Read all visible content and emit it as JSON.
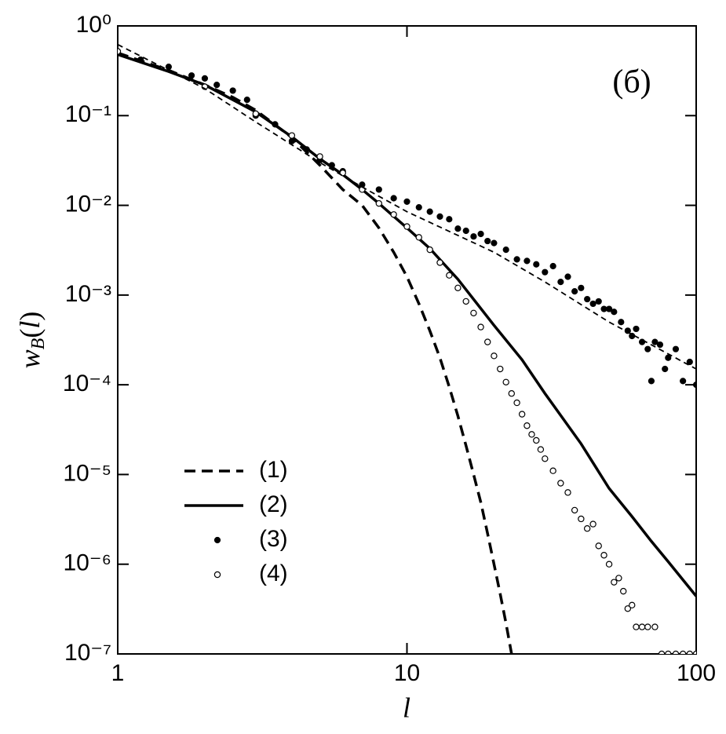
{
  "chart_data": {
    "type": "line",
    "log_x": true,
    "log_y": true,
    "x_label": "l",
    "y_label": [
      "w",
      "B",
      "(",
      "l",
      ")"
    ],
    "annotation": "(б)",
    "xlim": [
      1,
      100
    ],
    "xticks": [
      1,
      10,
      100
    ],
    "ylim": [
      1e-07,
      1
    ],
    "yticks": [
      {
        "value": 1,
        "label": "10⁰"
      },
      {
        "value": 0.1,
        "label": "10⁻¹"
      },
      {
        "value": 0.01,
        "label": "10⁻²"
      },
      {
        "value": 0.001,
        "label": "10⁻³"
      },
      {
        "value": 0.0001,
        "label": "10⁻⁴"
      },
      {
        "value": 1e-05,
        "label": "10⁻⁵"
      },
      {
        "value": 1e-06,
        "label": "10⁻⁶"
      },
      {
        "value": 1e-07,
        "label": "10⁻⁷"
      }
    ],
    "legend": "lower-left",
    "series": [
      {
        "name": "(1)",
        "color": "#000000",
        "style": "dashed-thick",
        "x": [
          1,
          1.5,
          2,
          2.5,
          3,
          4,
          5,
          6,
          7,
          8,
          9,
          10,
          11,
          12,
          13,
          14,
          15,
          16,
          17,
          18,
          19,
          20,
          21,
          22,
          23
        ],
        "values": [
          0.5,
          0.32,
          0.22,
          0.16,
          0.115,
          0.057,
          0.028,
          0.015,
          0.01,
          0.0056,
          0.003,
          0.0016,
          0.0008,
          0.0004,
          0.0002,
          9.5e-05,
          4.5e-05,
          2.1e-05,
          1e-05,
          4.9e-06,
          2.2e-06,
          1e-06,
          4.7e-07,
          2.2e-07,
          1e-07
        ]
      },
      {
        "name": "(2)",
        "color": "#000000",
        "style": "solid",
        "x": [
          1,
          1.5,
          2,
          3,
          4,
          5,
          6,
          7,
          8,
          10,
          12,
          15,
          20,
          25,
          30,
          40,
          50,
          60,
          70,
          80,
          90,
          100
        ],
        "values": [
          0.48,
          0.31,
          0.22,
          0.11,
          0.058,
          0.033,
          0.022,
          0.015,
          0.0105,
          0.0056,
          0.0033,
          0.0015,
          0.00046,
          0.00019,
          8e-05,
          2.2e-05,
          7e-06,
          3.4e-06,
          1.8e-06,
          1.07e-06,
          6.7e-07,
          4.4e-07
        ]
      },
      {
        "name": "(3)",
        "color": "#000000",
        "style": "filled-points",
        "x": [
          1,
          1.2,
          1.5,
          1.8,
          2,
          2.2,
          2.5,
          2.8,
          3,
          3.5,
          4,
          4.5,
          5,
          5.5,
          6,
          7,
          8,
          9,
          10,
          11,
          12,
          13,
          14,
          15,
          16,
          17,
          18,
          19,
          20,
          22,
          24,
          26,
          28,
          30,
          32,
          34,
          36,
          38,
          40,
          42,
          44,
          46,
          48,
          50,
          52,
          55,
          58,
          60,
          62,
          65,
          68,
          70,
          72,
          75,
          78,
          80,
          85,
          90,
          95,
          100
        ],
        "values": [
          0.5,
          0.42,
          0.35,
          0.28,
          0.26,
          0.22,
          0.19,
          0.15,
          0.1,
          0.08,
          0.052,
          0.042,
          0.032,
          0.028,
          0.024,
          0.017,
          0.015,
          0.012,
          0.011,
          0.0095,
          0.0085,
          0.0075,
          0.007,
          0.0055,
          0.0052,
          0.0045,
          0.0048,
          0.004,
          0.0038,
          0.0032,
          0.0025,
          0.0024,
          0.0022,
          0.0018,
          0.0021,
          0.0014,
          0.0016,
          0.0011,
          0.0012,
          0.0009,
          0.0008,
          0.00085,
          0.0007,
          0.0007,
          0.00065,
          0.0005,
          0.0004,
          0.00035,
          0.00042,
          0.0003,
          0.00025,
          0.00011,
          0.0003,
          0.00028,
          0.00015,
          0.0002,
          0.00025,
          0.00011,
          0.00018,
          0.0001
        ]
      },
      {
        "name": "(4)",
        "color": "#000000",
        "style": "open-points",
        "x": [
          1,
          2,
          3,
          4,
          5,
          6,
          7,
          8,
          9,
          10,
          11,
          12,
          13,
          14,
          15,
          16,
          17,
          18,
          19,
          20,
          21,
          22,
          23,
          24,
          25,
          26,
          27,
          28,
          29,
          30,
          32,
          34,
          36,
          38,
          40,
          42,
          44,
          46,
          48,
          50,
          52,
          54,
          56,
          58,
          60,
          62,
          65,
          68,
          72,
          76,
          80,
          85,
          90,
          95,
          100
        ],
        "values": [
          0.52,
          0.21,
          0.105,
          0.06,
          0.035,
          0.023,
          0.015,
          0.0105,
          0.0079,
          0.0058,
          0.0044,
          0.0032,
          0.0023,
          0.00166,
          0.0012,
          0.00085,
          0.00063,
          0.00044,
          0.0003,
          0.00021,
          0.00015,
          0.000107,
          8e-05,
          6.3e-05,
          4.7e-05,
          3.5e-05,
          2.8e-05,
          2.4e-05,
          1.9e-05,
          1.5e-05,
          1.1e-05,
          8e-06,
          6.3e-06,
          4e-06,
          3.2e-06,
          2.5e-06,
          2.8e-06,
          1.6e-06,
          1.26e-06,
          1e-06,
          6.3e-07,
          7e-07,
          5e-07,
          3.2e-07,
          3.5e-07,
          2e-07,
          2e-07,
          2e-07,
          2e-07,
          1e-07,
          1e-07,
          1e-07,
          1e-07,
          1e-07,
          1e-07
        ]
      },
      {
        "color": "#000000",
        "style": "dashed-thin",
        "x": [
          1,
          2,
          3,
          5,
          7,
          10,
          20,
          30,
          50,
          100
        ],
        "values": [
          0.62,
          0.2,
          0.085,
          0.03,
          0.016,
          0.0085,
          0.003,
          0.0014,
          0.0005,
          0.00015
        ]
      }
    ]
  }
}
